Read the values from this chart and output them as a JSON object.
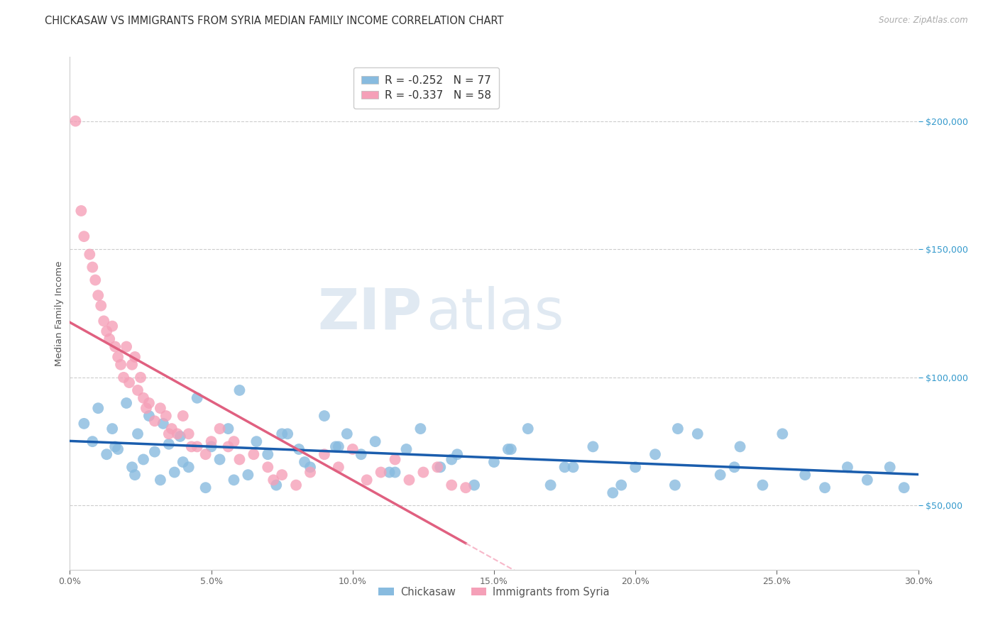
{
  "title": "CHICKASAW VS IMMIGRANTS FROM SYRIA MEDIAN FAMILY INCOME CORRELATION CHART",
  "source": "Source: ZipAtlas.com",
  "ylabel": "Median Family Income",
  "xlim": [
    0.0,
    30.0
  ],
  "ylim": [
    25000,
    225000
  ],
  "blue_R": -0.252,
  "blue_N": 77,
  "pink_R": -0.337,
  "pink_N": 58,
  "legend_labels": [
    "Chickasaw",
    "Immigrants from Syria"
  ],
  "blue_color": "#88BBDF",
  "pink_color": "#F5A0B8",
  "blue_line_color": "#1A5DAD",
  "pink_line_color": "#E06080",
  "pink_dashed_color": "#F5A0B8",
  "watermark_zip": "ZIP",
  "watermark_atlas": "atlas",
  "grid_color": "#CCCCCC",
  "background_color": "#FFFFFF",
  "title_fontsize": 10.5,
  "ylabel_fontsize": 9.5,
  "tick_fontsize": 9,
  "legend_fontsize": 11,
  "blue_x": [
    0.5,
    0.8,
    1.0,
    1.3,
    1.5,
    1.7,
    2.0,
    2.2,
    2.4,
    2.6,
    2.8,
    3.0,
    3.2,
    3.5,
    3.7,
    3.9,
    4.2,
    4.5,
    4.8,
    5.0,
    5.3,
    5.6,
    6.0,
    6.3,
    6.6,
    7.0,
    7.3,
    7.7,
    8.1,
    8.5,
    9.0,
    9.4,
    9.8,
    10.3,
    10.8,
    11.3,
    11.9,
    12.4,
    13.1,
    13.7,
    14.3,
    15.0,
    15.6,
    16.2,
    17.0,
    17.8,
    18.5,
    19.2,
    20.0,
    20.7,
    21.4,
    22.2,
    23.0,
    23.7,
    24.5,
    25.2,
    26.0,
    26.7,
    27.5,
    28.2,
    29.0,
    29.5,
    1.6,
    2.3,
    3.3,
    4.0,
    5.8,
    7.5,
    8.3,
    9.5,
    11.5,
    13.5,
    15.5,
    17.5,
    19.5,
    21.5,
    23.5
  ],
  "blue_y": [
    82000,
    75000,
    88000,
    70000,
    80000,
    72000,
    90000,
    65000,
    78000,
    68000,
    85000,
    71000,
    60000,
    74000,
    63000,
    77000,
    65000,
    92000,
    57000,
    73000,
    68000,
    80000,
    95000,
    62000,
    75000,
    70000,
    58000,
    78000,
    72000,
    65000,
    85000,
    73000,
    78000,
    70000,
    75000,
    63000,
    72000,
    80000,
    65000,
    70000,
    58000,
    67000,
    72000,
    80000,
    58000,
    65000,
    73000,
    55000,
    65000,
    70000,
    58000,
    78000,
    62000,
    73000,
    58000,
    78000,
    62000,
    57000,
    65000,
    60000,
    65000,
    57000,
    73000,
    62000,
    82000,
    67000,
    60000,
    78000,
    67000,
    73000,
    63000,
    68000,
    72000,
    65000,
    58000,
    80000,
    65000
  ],
  "pink_x": [
    0.2,
    0.4,
    0.5,
    0.7,
    0.8,
    0.9,
    1.0,
    1.1,
    1.2,
    1.3,
    1.4,
    1.5,
    1.6,
    1.7,
    1.8,
    1.9,
    2.0,
    2.1,
    2.2,
    2.3,
    2.4,
    2.5,
    2.6,
    2.7,
    2.8,
    3.0,
    3.2,
    3.4,
    3.6,
    3.8,
    4.0,
    4.2,
    4.5,
    4.8,
    5.0,
    5.3,
    5.6,
    6.0,
    6.5,
    7.0,
    7.5,
    8.0,
    8.5,
    9.0,
    9.5,
    10.0,
    10.5,
    11.0,
    11.5,
    12.0,
    12.5,
    13.0,
    13.5,
    14.0,
    3.5,
    4.3,
    5.8,
    7.2
  ],
  "pink_y": [
    200000,
    165000,
    155000,
    148000,
    143000,
    138000,
    132000,
    128000,
    122000,
    118000,
    115000,
    120000,
    112000,
    108000,
    105000,
    100000,
    112000,
    98000,
    105000,
    108000,
    95000,
    100000,
    92000,
    88000,
    90000,
    83000,
    88000,
    85000,
    80000,
    78000,
    85000,
    78000,
    73000,
    70000,
    75000,
    80000,
    73000,
    68000,
    70000,
    65000,
    62000,
    58000,
    63000,
    70000,
    65000,
    72000,
    60000,
    63000,
    68000,
    60000,
    63000,
    65000,
    58000,
    57000,
    78000,
    73000,
    75000,
    60000
  ]
}
